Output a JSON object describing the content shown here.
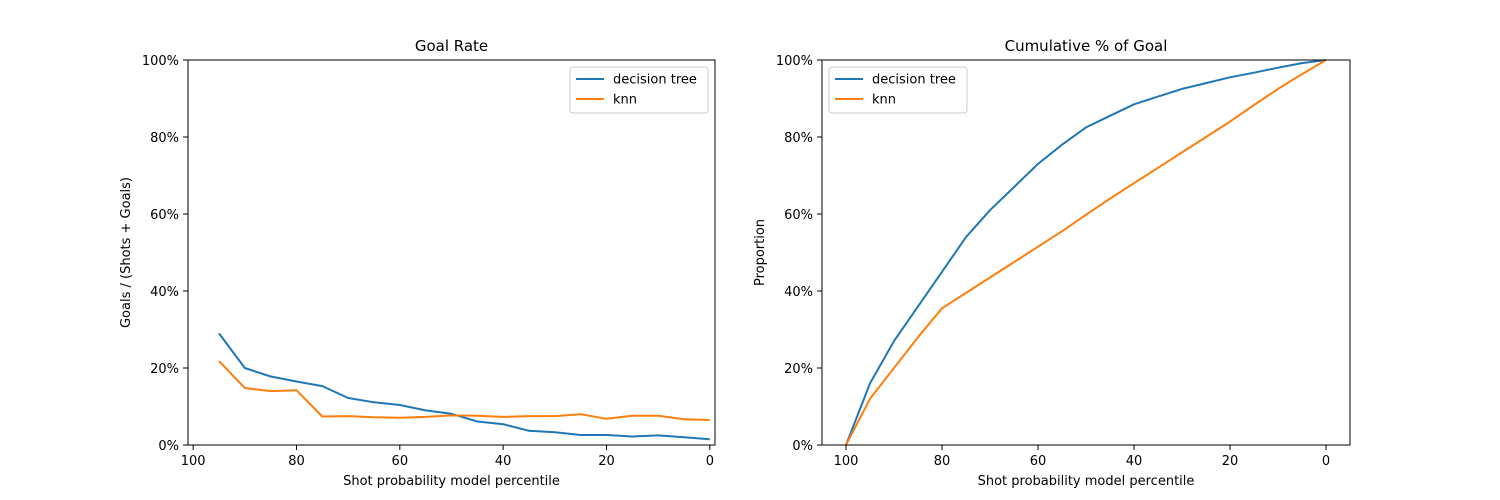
{
  "chart_data": [
    {
      "type": "line",
      "title": "Goal Rate",
      "xlabel": "Shot probability model percentile",
      "ylabel": "Goals / (Shots + Goals)",
      "xlim": [
        101,
        -1
      ],
      "ylim": [
        0,
        1
      ],
      "x_reversed": true,
      "x_ticks": [
        100,
        80,
        60,
        40,
        20,
        0
      ],
      "y_ticks": [
        0,
        0.2,
        0.4,
        0.6,
        0.8,
        1.0
      ],
      "y_tick_labels": [
        "0%",
        "20%",
        "40%",
        "60%",
        "80%",
        "100%"
      ],
      "legend_position": "top-right",
      "x": [
        95,
        90,
        85,
        80,
        75,
        70,
        65,
        60,
        55,
        50,
        45,
        40,
        35,
        30,
        25,
        20,
        15,
        10,
        5,
        0
      ],
      "series": [
        {
          "name": "decision tree",
          "color": "#1f77b4",
          "values": [
            0.29,
            0.2,
            0.178,
            0.165,
            0.153,
            0.122,
            0.111,
            0.104,
            0.09,
            0.081,
            0.061,
            0.054,
            0.037,
            0.033,
            0.026,
            0.026,
            0.022,
            0.025,
            0.02,
            0.015
          ]
        },
        {
          "name": "knn",
          "color": "#ff7f0e",
          "values": [
            0.218,
            0.148,
            0.14,
            0.142,
            0.074,
            0.075,
            0.072,
            0.071,
            0.073,
            0.077,
            0.076,
            0.073,
            0.075,
            0.075,
            0.08,
            0.068,
            0.076,
            0.076,
            0.067,
            0.065
          ]
        }
      ]
    },
    {
      "type": "line",
      "title": "Cumulative % of Goal",
      "xlabel": "Shot probability model percentile",
      "ylabel": "Proportion",
      "xlim": [
        105,
        -5
      ],
      "ylim": [
        0,
        1
      ],
      "x_reversed": true,
      "x_ticks": [
        100,
        80,
        60,
        40,
        20,
        0
      ],
      "y_ticks": [
        0,
        0.2,
        0.4,
        0.6,
        0.8,
        1.0
      ],
      "y_tick_labels": [
        "0%",
        "20%",
        "40%",
        "60%",
        "80%",
        "100%"
      ],
      "legend_position": "top-left",
      "x": [
        100,
        95,
        90,
        85,
        80,
        75,
        70,
        65,
        60,
        55,
        50,
        45,
        40,
        35,
        30,
        25,
        20,
        15,
        10,
        5,
        0
      ],
      "series": [
        {
          "name": "decision tree",
          "color": "#1f77b4",
          "values": [
            0.0,
            0.16,
            0.27,
            0.36,
            0.45,
            0.54,
            0.61,
            0.67,
            0.73,
            0.78,
            0.825,
            0.855,
            0.885,
            0.905,
            0.925,
            0.94,
            0.955,
            0.967,
            0.98,
            0.992,
            1.0
          ]
        },
        {
          "name": "knn",
          "color": "#ff7f0e",
          "values": [
            0.0,
            0.12,
            0.2,
            0.28,
            0.355,
            0.395,
            0.435,
            0.475,
            0.515,
            0.555,
            0.598,
            0.64,
            0.68,
            0.72,
            0.76,
            0.8,
            0.84,
            0.883,
            0.925,
            0.963,
            1.0
          ]
        }
      ]
    }
  ]
}
